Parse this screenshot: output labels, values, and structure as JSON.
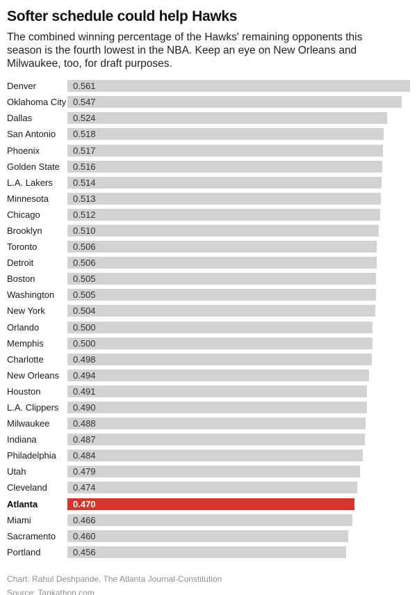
{
  "header": {
    "title": "Softer schedule could help Hawks",
    "subtitle": "The combined winning percentage of the Hawks' remaining opponents this season is the fourth lowest in the NBA. Keep an eye on New Orleans and Milwaukee, too, for draft purposes.",
    "subtitle_lines": [
      "The combined winning percentage of the Hawks' remaining opponents this",
      "season is the fourth lowest in the NBA. Keep an eye on New Orleans and",
      "Milwaukee, too, for draft purposes."
    ]
  },
  "chart_data": {
    "type": "bar",
    "orientation": "horizontal",
    "title": "Softer schedule could help Hawks",
    "xlabel": "",
    "ylabel": "",
    "xlim": [
      0,
      0.561
    ],
    "grid": false,
    "value_labels_inside_bars": true,
    "categories": [
      "Denver",
      "Oklahoma City",
      "Dallas",
      "San Antonio",
      "Phoenix",
      "Golden State",
      "L.A. Lakers",
      "Minnesota",
      "Chicago",
      "Brooklyn",
      "Toronto",
      "Detroit",
      "Boston",
      "Washington",
      "New York",
      "Orlando",
      "Memphis",
      "Charlotte",
      "New Orleans",
      "Houston",
      "L.A. Clippers",
      "Milwaukee",
      "Indiana",
      "Philadelphia",
      "Utah",
      "Cleveland",
      "Atlanta",
      "Miami",
      "Sacramento",
      "Portland"
    ],
    "values": [
      0.561,
      0.547,
      0.524,
      0.518,
      0.517,
      0.516,
      0.514,
      0.513,
      0.512,
      0.51,
      0.506,
      0.506,
      0.505,
      0.505,
      0.504,
      0.5,
      0.5,
      0.498,
      0.494,
      0.491,
      0.49,
      0.488,
      0.487,
      0.484,
      0.479,
      0.474,
      0.47,
      0.466,
      0.46,
      0.456
    ],
    "highlight": {
      "category": "Atlanta",
      "bar_color": "#d7342e",
      "value_text_color": "#ffffff"
    },
    "bar_color": "#d2d2d2",
    "value_decimals": 3
  },
  "footer": {
    "byline": "Chart: Rahul Deshpande, The Atlanta Journal-Constitution",
    "source": "Source: Tankathon.com"
  },
  "colors": {
    "background": "#ffffff",
    "bar_default": "#d2d2d2",
    "bar_highlight": "#d7342e",
    "title_text": "#111111",
    "body_text": "#222222",
    "footer_text": "#8f8f8f"
  }
}
